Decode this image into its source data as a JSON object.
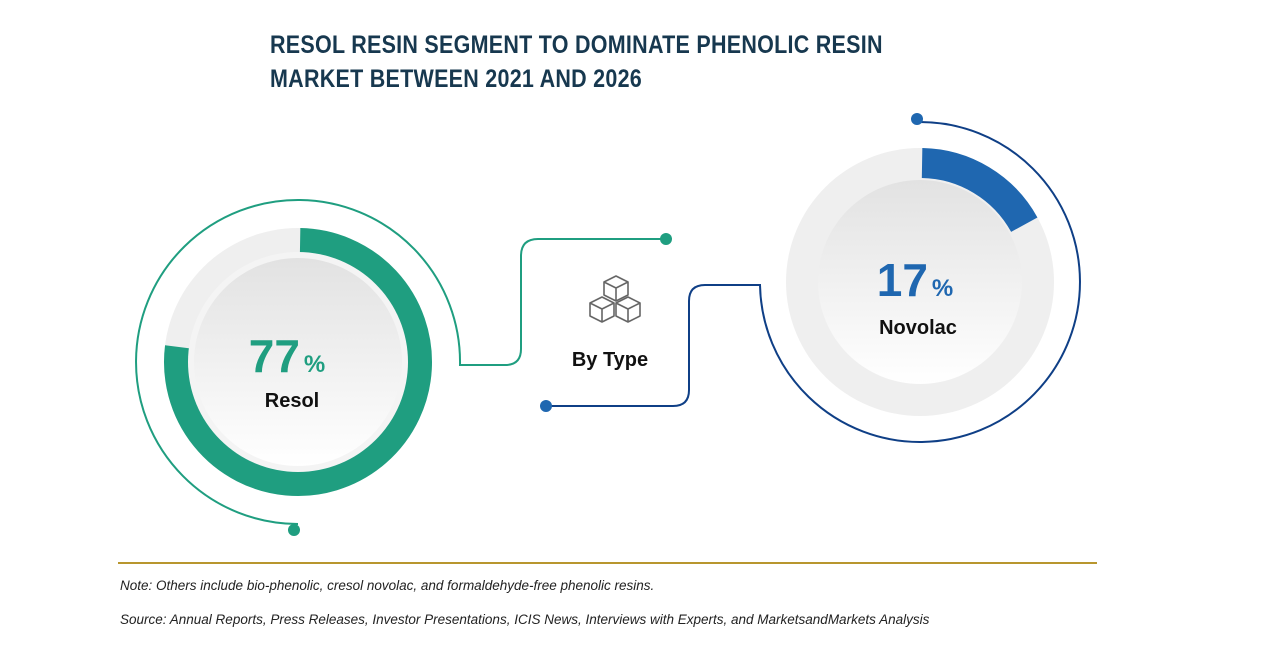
{
  "title": "RESOL RESIN SEGMENT TO DOMINATE PHENOLIC RESIN MARKET BETWEEN 2021 AND 2026",
  "center_label": "By Type",
  "center_icon": "cubes-icon",
  "colors": {
    "resol": "#1f9e80",
    "novolac": "#1f67b0",
    "novolac_line": "#0f3f86",
    "rule": "#b8962e"
  },
  "chart_data": {
    "type": "pie",
    "title": "RESOL RESIN SEGMENT TO DOMINATE PHENOLIC RESIN MARKET BETWEEN 2021 AND 2026",
    "categories": [
      "Resol",
      "Novolac"
    ],
    "values": [
      77,
      17
    ],
    "unit": "%",
    "labels": {
      "resol_value": "77",
      "novolac_value": "17",
      "percent": "%"
    }
  },
  "footer": {
    "note": "Note: Others include bio-phenolic, cresol novolac, and formaldehyde-free phenolic resins.",
    "source": "Source: Annual Reports, Press Releases, Investor Presentations, ICIS News, Interviews with Experts, and MarketsandMarkets Analysis"
  }
}
